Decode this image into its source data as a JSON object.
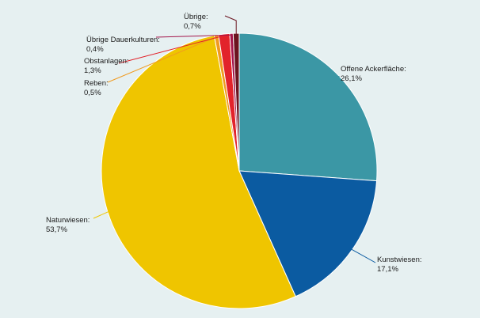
{
  "chart_data": {
    "type": "pie",
    "title": "",
    "slices": [
      {
        "label": "Offene Ackerfläche:",
        "display": "26,1%",
        "value": 26.1,
        "color": "#3b97a5"
      },
      {
        "label": "Kunstwiesen:",
        "display": "17,1%",
        "value": 17.1,
        "color": "#0b5ba1"
      },
      {
        "label": "Naturwiesen:",
        "display": "53,7%",
        "value": 53.7,
        "color": "#efc500"
      },
      {
        "label": "Reben:",
        "display": "0,5%",
        "value": 0.5,
        "color": "#f09a1f"
      },
      {
        "label": "Obstanlagen:",
        "display": "1,3%",
        "value": 1.3,
        "color": "#e2232b"
      },
      {
        "label": "Übrige Dauerkulturen:",
        "display": "0,4%",
        "value": 0.4,
        "color": "#a3154a"
      },
      {
        "label": "Übrige:",
        "display": "0,7%",
        "value": 0.7,
        "color": "#6b1420"
      }
    ],
    "start": "12 o'clock",
    "direction": "clockwise",
    "legend": "none",
    "labels": "outside with leader lines"
  }
}
